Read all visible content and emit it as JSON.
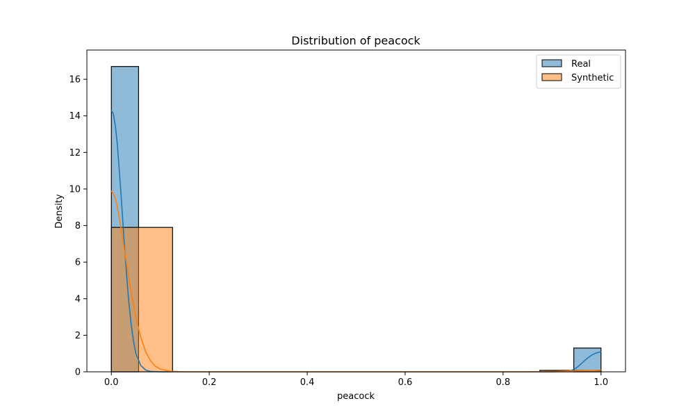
{
  "chart_data": {
    "type": "bar",
    "title": "Distribution of peacock",
    "xlabel": "peacock",
    "ylabel": "Density",
    "xlim": [
      -0.05,
      1.05
    ],
    "ylim": [
      0,
      17.6
    ],
    "xticks": [
      0.0,
      0.2,
      0.4,
      0.6,
      0.8,
      1.0
    ],
    "xtick_labels": [
      "0.0",
      "0.2",
      "0.4",
      "0.6",
      "0.8",
      "1.0"
    ],
    "yticks": [
      0,
      2,
      4,
      6,
      8,
      10,
      12,
      14,
      16
    ],
    "ytick_labels": [
      "0",
      "2",
      "4",
      "6",
      "8",
      "10",
      "12",
      "14",
      "16"
    ],
    "grid": false,
    "legend_position": "top-right",
    "series": [
      {
        "name": "Real",
        "color": "#1f77b4",
        "bins": [
          {
            "x0": 0.0,
            "x1": 0.0556,
            "density": 16.7
          },
          {
            "x0": 0.9444,
            "x1": 1.0,
            "density": 1.3
          }
        ],
        "kde": [
          [
            0.0,
            14.3
          ],
          [
            0.004,
            14.1
          ],
          [
            0.008,
            13.5
          ],
          [
            0.012,
            12.5
          ],
          [
            0.016,
            11.1
          ],
          [
            0.02,
            9.6
          ],
          [
            0.025,
            7.6
          ],
          [
            0.03,
            5.7
          ],
          [
            0.035,
            4.0
          ],
          [
            0.04,
            2.7
          ],
          [
            0.045,
            1.7
          ],
          [
            0.05,
            1.0
          ],
          [
            0.06,
            0.35
          ],
          [
            0.07,
            0.1
          ],
          [
            0.08,
            0.02
          ],
          [
            0.1,
            0.0
          ],
          [
            0.5,
            0.0
          ],
          [
            0.9,
            0.0
          ],
          [
            0.93,
            0.02
          ],
          [
            0.94,
            0.08
          ],
          [
            0.95,
            0.22
          ],
          [
            0.96,
            0.45
          ],
          [
            0.97,
            0.7
          ],
          [
            0.98,
            0.9
          ],
          [
            0.99,
            1.03
          ],
          [
            1.0,
            1.1
          ]
        ]
      },
      {
        "name": "Synthetic",
        "color": "#ff7f0e",
        "bins": [
          {
            "x0": 0.0,
            "x1": 0.125,
            "density": 7.9
          },
          {
            "x0": 0.875,
            "x1": 1.0,
            "density": 0.08
          }
        ],
        "kde": [
          [
            0.0,
            9.9
          ],
          [
            0.005,
            9.7
          ],
          [
            0.01,
            9.3
          ],
          [
            0.015,
            8.6
          ],
          [
            0.02,
            7.8
          ],
          [
            0.03,
            6.1
          ],
          [
            0.04,
            4.4
          ],
          [
            0.05,
            3.0
          ],
          [
            0.06,
            1.9
          ],
          [
            0.07,
            1.1
          ],
          [
            0.08,
            0.6
          ],
          [
            0.09,
            0.3
          ],
          [
            0.1,
            0.15
          ],
          [
            0.12,
            0.03
          ],
          [
            0.15,
            0.0
          ],
          [
            0.5,
            0.0
          ],
          [
            0.85,
            0.0
          ],
          [
            0.9,
            0.02
          ],
          [
            0.95,
            0.06
          ],
          [
            1.0,
            0.1
          ]
        ]
      }
    ]
  }
}
